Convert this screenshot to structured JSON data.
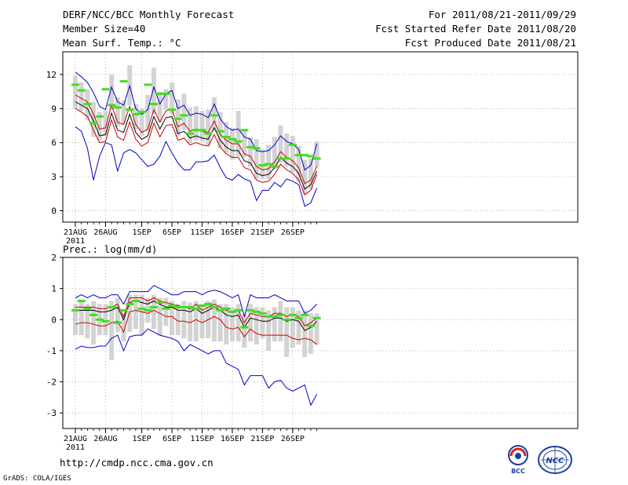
{
  "header": {
    "title": "DERF/NCC/BCC Monthly Forecast",
    "member_size": "Member Size=40",
    "variable": "Mean Surf. Temp.: °C",
    "period": "For 2011/08/21-2011/09/29",
    "started": "Fcst Started Refer Date 2011/08/20",
    "produced": "Fcst Produced Date 2011/08/21"
  },
  "footer": {
    "url": "http://cmdp.ncc.cma.gov.cn",
    "credit": "GrADS: COLA/IGES",
    "logo_left_text": "BCC",
    "logo_right_text": "NCC"
  },
  "colors": {
    "mean": "#000000",
    "spread": "#cc0000",
    "extremes": "#0000cc",
    "box": "#d3d3d3",
    "median": "#44dd22",
    "grid": "#888888"
  },
  "chart_data": [
    {
      "type": "box",
      "title": "Mean Surf. Temp.: °C",
      "x_tick_labels": [
        "21AUG",
        "26AUG",
        "1SEP",
        "6SEP",
        "11SEP",
        "16SEP",
        "21SEP",
        "26SEP"
      ],
      "x_tick_days": [
        0,
        5,
        11,
        16,
        21,
        26,
        31,
        36
      ],
      "year_label": "2011",
      "ylim": [
        -1,
        14
      ],
      "yticks": [
        0,
        3,
        6,
        9,
        12
      ],
      "series": [
        {
          "name": "max",
          "values": [
            12.2,
            11.8,
            11.3,
            10.4,
            9.2,
            8.9,
            10.9,
            9.6,
            9.3,
            11.0,
            9.0,
            8.5,
            8.9,
            10.9,
            9.4,
            10.3,
            10.6,
            9.0,
            9.3,
            8.4,
            8.6,
            8.5,
            8.2,
            9.4,
            8.1,
            7.4,
            7.1,
            7.2,
            6.5,
            6.3,
            5.3,
            5.2,
            5.3,
            5.8,
            6.6,
            6.1,
            5.9,
            5.4,
            3.6,
            4.0,
            5.9
          ]
        },
        {
          "name": "mean_plus",
          "values": [
            10.2,
            9.9,
            9.6,
            8.5,
            7.2,
            7.3,
            9.3,
            7.8,
            7.6,
            9.2,
            7.6,
            6.9,
            7.2,
            8.9,
            7.8,
            8.8,
            8.9,
            7.4,
            7.7,
            7.0,
            7.2,
            7.0,
            6.9,
            7.9,
            6.7,
            6.2,
            5.9,
            5.9,
            5.0,
            4.8,
            3.9,
            3.6,
            3.7,
            4.3,
            5.2,
            4.7,
            4.4,
            3.8,
            2.4,
            2.7,
            3.9
          ]
        },
        {
          "name": "mean",
          "values": [
            9.6,
            9.3,
            9.0,
            7.9,
            6.6,
            6.7,
            8.6,
            7.1,
            6.9,
            8.5,
            6.9,
            6.3,
            6.6,
            8.3,
            7.2,
            8.2,
            8.3,
            6.8,
            7.0,
            6.4,
            6.6,
            6.4,
            6.3,
            7.3,
            6.2,
            5.6,
            5.3,
            5.3,
            4.4,
            4.2,
            3.3,
            3.1,
            3.2,
            3.8,
            4.7,
            4.2,
            3.9,
            3.3,
            1.9,
            2.3,
            3.5
          ]
        },
        {
          "name": "mean_minus",
          "values": [
            9.0,
            8.7,
            8.3,
            7.1,
            6.0,
            6.1,
            8.0,
            6.5,
            6.2,
            7.8,
            6.3,
            5.7,
            6.0,
            7.7,
            6.5,
            7.5,
            7.6,
            6.2,
            6.4,
            5.8,
            6.0,
            5.8,
            5.7,
            6.7,
            5.6,
            5.0,
            4.7,
            4.7,
            3.8,
            3.6,
            2.7,
            2.5,
            2.6,
            3.2,
            4.1,
            3.6,
            3.3,
            2.7,
            1.4,
            1.8,
            3.2
          ]
        },
        {
          "name": "min",
          "values": [
            7.4,
            7.0,
            5.5,
            2.7,
            4.8,
            6.0,
            5.8,
            3.5,
            5.1,
            5.4,
            5.1,
            4.5,
            3.9,
            4.1,
            4.8,
            6.1,
            5.1,
            4.2,
            3.6,
            3.6,
            4.3,
            4.3,
            4.4,
            4.9,
            3.8,
            2.9,
            2.7,
            3.2,
            2.8,
            2.6,
            0.9,
            1.8,
            1.8,
            2.5,
            2.1,
            2.8,
            2.6,
            2.3,
            0.4,
            0.7,
            2.0
          ]
        },
        {
          "name": "box_top",
          "values": [
            11.9,
            11.3,
            10.7,
            9.6,
            8.7,
            8.8,
            12.0,
            10.0,
            9.7,
            12.8,
            9.4,
            9.0,
            10.2,
            12.6,
            10.5,
            10.7,
            11.3,
            9.8,
            10.3,
            9.1,
            9.2,
            8.8,
            8.9,
            10.0,
            8.7,
            7.8,
            7.3,
            8.8,
            7.0,
            6.5,
            6.3,
            5.4,
            5.8,
            6.5,
            7.5,
            6.8,
            6.6,
            5.7,
            4.5,
            4.6,
            6.1
          ]
        },
        {
          "name": "box_bottom",
          "values": [
            9.0,
            8.8,
            8.0,
            6.5,
            6.2,
            6.6,
            8.9,
            7.4,
            7.6,
            9.3,
            7.2,
            6.6,
            7.0,
            8.5,
            7.8,
            8.9,
            8.5,
            6.5,
            7.1,
            6.0,
            6.2,
            6.1,
            5.7,
            7.1,
            5.5,
            5.1,
            4.5,
            4.8,
            4.7,
            3.9,
            2.8,
            2.8,
            2.8,
            3.7,
            4.2,
            3.9,
            3.4,
            2.5,
            1.5,
            1.9,
            3.8
          ]
        },
        {
          "name": "median",
          "values": [
            11.1,
            10.6,
            9.4,
            7.7,
            8.3,
            10.7,
            9.3,
            9.1,
            11.4,
            8.9,
            8.5,
            8.7,
            11.1,
            9.4,
            10.3,
            10.3,
            8.9,
            8.1,
            8.4,
            6.8,
            7.1,
            7.1,
            6.8,
            8.4,
            7.0,
            6.5,
            6.3,
            6.1,
            7.1,
            5.6,
            5.5,
            4.0,
            4.1,
            3.9,
            4.6,
            4.6,
            5.8,
            4.9,
            4.9,
            4.8,
            4.6
          ]
        }
      ]
    },
    {
      "type": "box",
      "title": "Prec.: log(mm/d)",
      "x_tick_labels": [
        "21AUG",
        "26AUG",
        "1SEP",
        "6SEP",
        "11SEP",
        "16SEP",
        "21SEP",
        "26SEP"
      ],
      "x_tick_days": [
        0,
        5,
        11,
        16,
        21,
        26,
        31,
        36
      ],
      "year_label": "2011",
      "ylim": [
        -3.5,
        2
      ],
      "yticks": [
        -3,
        -2,
        -1,
        0,
        1,
        2
      ],
      "series": [
        {
          "name": "max",
          "values": [
            0.7,
            0.8,
            0.7,
            0.8,
            0.7,
            0.7,
            0.8,
            0.8,
            0.5,
            0.9,
            0.9,
            0.9,
            0.9,
            1.1,
            1.0,
            0.9,
            0.8,
            0.8,
            0.9,
            0.9,
            0.9,
            0.8,
            0.9,
            0.95,
            0.9,
            0.8,
            0.7,
            0.8,
            0.1,
            0.8,
            0.7,
            0.7,
            0.7,
            0.8,
            0.7,
            0.6,
            0.6,
            0.6,
            0.2,
            0.3,
            0.5
          ]
        },
        {
          "name": "mean_plus",
          "values": [
            0.4,
            0.4,
            0.4,
            0.4,
            0.35,
            0.35,
            0.4,
            0.5,
            0.1,
            0.7,
            0.7,
            0.7,
            0.6,
            0.7,
            0.6,
            0.55,
            0.5,
            0.45,
            0.4,
            0.35,
            0.5,
            0.3,
            0.4,
            0.5,
            0.4,
            0.3,
            0.25,
            0.3,
            -0.1,
            0.2,
            0.15,
            0.1,
            0.1,
            0.2,
            0.2,
            0.1,
            0.15,
            0.1,
            -0.2,
            -0.1,
            0.05
          ]
        },
        {
          "name": "mean",
          "values": [
            0.3,
            0.3,
            0.3,
            0.3,
            0.25,
            0.25,
            0.3,
            0.4,
            0.0,
            0.55,
            0.6,
            0.55,
            0.5,
            0.6,
            0.5,
            0.4,
            0.4,
            0.3,
            0.3,
            0.25,
            0.35,
            0.2,
            0.3,
            0.4,
            0.3,
            0.15,
            0.1,
            0.15,
            -0.25,
            0.05,
            0.0,
            -0.05,
            -0.05,
            0.05,
            0.05,
            -0.05,
            0.0,
            -0.05,
            -0.35,
            -0.25,
            -0.05
          ]
        },
        {
          "name": "mean_minus",
          "values": [
            -0.15,
            -0.1,
            -0.1,
            -0.15,
            -0.2,
            -0.2,
            -0.1,
            -0.05,
            -0.4,
            0.25,
            0.3,
            0.25,
            0.2,
            0.3,
            0.2,
            0.1,
            0.1,
            -0.05,
            -0.05,
            -0.1,
            0.0,
            -0.1,
            0.0,
            0.1,
            0.0,
            -0.25,
            -0.3,
            -0.25,
            -0.55,
            -0.3,
            -0.45,
            -0.5,
            -0.5,
            -0.5,
            -0.5,
            -0.5,
            -0.6,
            -0.65,
            -0.6,
            -0.65,
            -0.8
          ]
        },
        {
          "name": "min",
          "values": [
            -0.95,
            -0.85,
            -0.9,
            -0.9,
            -0.85,
            -0.85,
            -0.6,
            -0.5,
            -1.0,
            -0.55,
            -0.5,
            -0.5,
            -0.3,
            -0.4,
            -0.5,
            -0.55,
            -0.6,
            -0.7,
            -1.0,
            -0.8,
            -0.9,
            -1.0,
            -1.1,
            -1.0,
            -1.0,
            -1.4,
            -1.5,
            -1.6,
            -2.1,
            -1.8,
            -1.8,
            -1.8,
            -2.2,
            -2.0,
            -1.95,
            -2.2,
            -2.3,
            -2.2,
            -2.1,
            -2.75,
            -2.4
          ]
        },
        {
          "name": "box_top",
          "values": [
            0.5,
            0.6,
            0.5,
            0.6,
            0.5,
            0.5,
            0.6,
            0.7,
            0.2,
            0.8,
            0.8,
            0.8,
            0.7,
            0.8,
            0.7,
            0.7,
            0.6,
            0.5,
            0.6,
            0.55,
            0.6,
            0.5,
            0.6,
            0.65,
            0.5,
            0.5,
            0.4,
            0.5,
            0.2,
            0.5,
            0.4,
            0.4,
            0.3,
            0.4,
            0.6,
            0.4,
            0.4,
            0.3,
            0.3,
            0.2,
            0.2
          ]
        },
        {
          "name": "box_bottom",
          "values": [
            -0.5,
            -0.5,
            -0.6,
            -0.8,
            -0.5,
            -0.5,
            -1.3,
            -0.4,
            -0.7,
            -0.4,
            -0.3,
            -0.5,
            -0.1,
            -0.3,
            -0.5,
            -0.2,
            -0.5,
            -0.5,
            -0.6,
            -0.7,
            -0.7,
            -0.6,
            -0.6,
            -0.7,
            -0.7,
            -0.8,
            -0.7,
            -0.7,
            -0.9,
            -0.7,
            -0.8,
            -0.6,
            -1.0,
            -0.7,
            -0.7,
            -1.2,
            -0.9,
            -0.8,
            -1.2,
            -1.1,
            -0.8
          ]
        },
        {
          "name": "median",
          "values": [
            0.3,
            0.6,
            0.35,
            0.15,
            0.0,
            -0.05,
            0.4,
            -0.1,
            0.3,
            0.5,
            0.6,
            0.35,
            0.3,
            0.4,
            0.55,
            0.35,
            0.45,
            0.4,
            0.4,
            0.4,
            0.35,
            0.45,
            0.5,
            0.4,
            0.3,
            0.35,
            0.25,
            0.3,
            -0.25,
            0.3,
            0.25,
            0.2,
            0.1,
            0.1,
            0.15,
            0.0,
            0.15,
            0.05,
            0.15,
            -0.2,
            0.05
          ]
        }
      ]
    }
  ]
}
